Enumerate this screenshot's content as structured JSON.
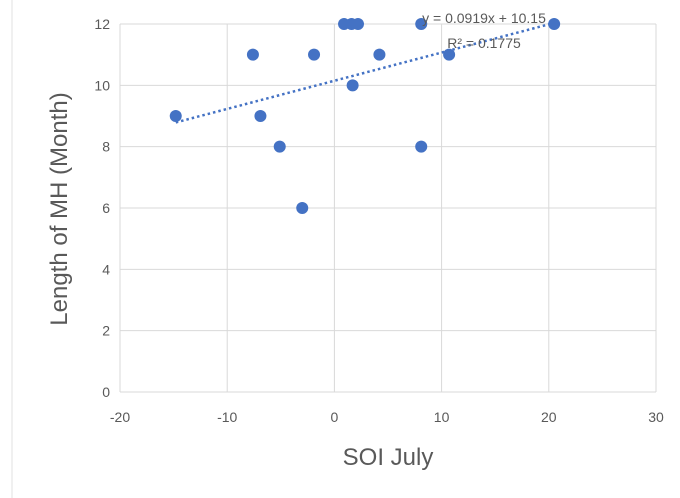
{
  "chart_data": {
    "type": "scatter",
    "xlabel": "SOI July",
    "ylabel": "Length of MH (Month)",
    "xlim": [
      -20,
      30
    ],
    "ylim": [
      0,
      12
    ],
    "x_ticks": [
      -20,
      -10,
      0,
      10,
      20,
      30
    ],
    "y_ticks": [
      0,
      2,
      4,
      6,
      8,
      10,
      12
    ],
    "grid": true,
    "marker_color": "#4472c4",
    "trendline_color": "#4472c4",
    "series": [
      {
        "x": [
          -14.8,
          -7.6,
          -6.9,
          -5.1,
          -3.0,
          -1.9,
          0.9,
          1.6,
          2.2,
          1.7,
          4.2,
          8.1,
          8.1,
          10.7,
          20.5
        ],
        "y": [
          9,
          11,
          9,
          8,
          6,
          11,
          12,
          12,
          12,
          10,
          11,
          12,
          8,
          11,
          12
        ]
      }
    ],
    "trendline": {
      "type": "linear",
      "slope": 0.0919,
      "intercept": 10.15,
      "x_range": [
        -14.8,
        20.5
      ],
      "equation": "y = 0.0919x + 10.15",
      "r_squared": "R² = 0.1775"
    }
  }
}
